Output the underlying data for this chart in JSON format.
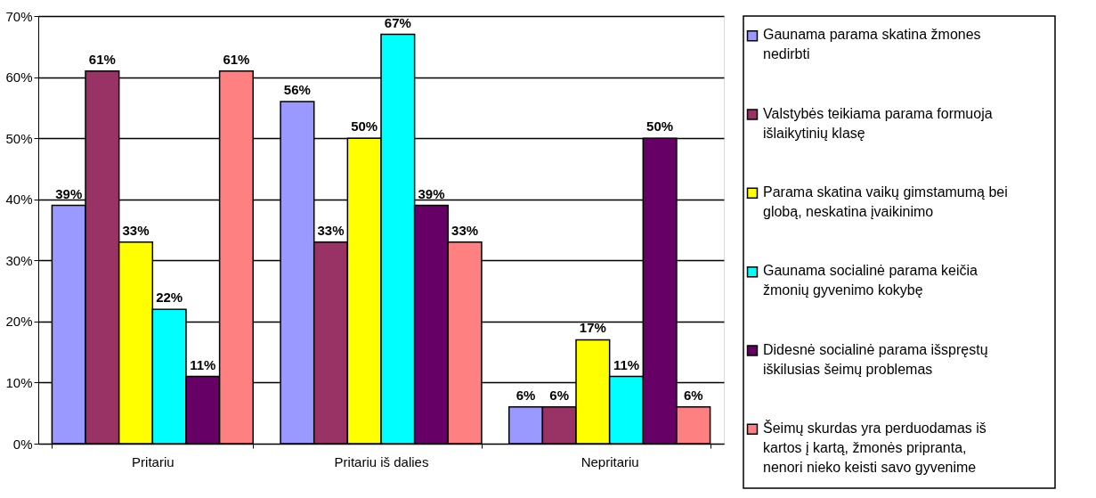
{
  "chart_data": {
    "type": "bar",
    "categories": [
      "Pritariu",
      "Pritariu iš dalies",
      "Nepritariu"
    ],
    "series": [
      {
        "name": "Gaunama parama skatina žmones nedirbti",
        "color": "#9999ff",
        "values": [
          39,
          56,
          6
        ],
        "value_labels": [
          "39%",
          "56%",
          "6%"
        ]
      },
      {
        "name": "Valstybės teikiama parama formuoja išlaikytinių klasę",
        "color": "#993366",
        "values": [
          61,
          33,
          6
        ],
        "value_labels": [
          "61%",
          "33%",
          "6%"
        ]
      },
      {
        "name": "Parama skatina vaikų gimstamumą bei globą, neskatina įvaikinimo",
        "color": "#ffff00",
        "values": [
          33,
          50,
          17
        ],
        "value_labels": [
          "33%",
          "50%",
          "17%"
        ]
      },
      {
        "name": "Gaunama socialinė parama keičia žmonių gyvenimo kokybę",
        "color": "#00ffff",
        "values": [
          22,
          67,
          11
        ],
        "value_labels": [
          "22%",
          "67%",
          "11%"
        ]
      },
      {
        "name": "Didesnė socialinė parama išspręstų iškilusias šeimų problemas",
        "color": "#660066",
        "values": [
          11,
          39,
          50
        ],
        "value_labels": [
          "11%",
          "39%",
          "50%"
        ]
      },
      {
        "name": "Šeimų skurdas yra perduodamas iš kartos į kartą, žmonės pripranta, nenori nieko keisti savo gyvenime",
        "color": "#ff8080",
        "values": [
          61,
          33,
          6
        ],
        "value_labels": [
          "61%",
          "33%",
          "6%"
        ]
      }
    ],
    "ylim": [
      0,
      70
    ],
    "yticks": [
      {
        "value": 0,
        "label": "0%"
      },
      {
        "value": 10,
        "label": "10%"
      },
      {
        "value": 20,
        "label": "20%"
      },
      {
        "value": 30,
        "label": "30%"
      },
      {
        "value": 40,
        "label": "40%"
      },
      {
        "value": 50,
        "label": "50%"
      },
      {
        "value": 60,
        "label": "60%"
      },
      {
        "value": 70,
        "label": "70%"
      }
    ],
    "grid": "y",
    "legend": "right"
  }
}
